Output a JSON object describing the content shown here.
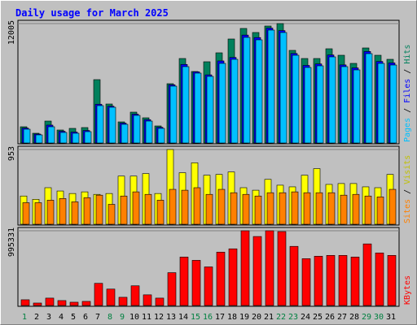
{
  "title": "Daily usage for March 2025",
  "chart_data": [
    {
      "type": "bar",
      "ylim": [
        0,
        12005
      ],
      "yticks": [
        12005
      ],
      "series": [
        {
          "name": "Hits",
          "color": "#00805c",
          "values": [
            1633,
            980,
            2205,
            1307,
            1470,
            1552,
            6370,
            3920,
            2123,
            3103,
            2532,
            1715,
            5962,
            8493,
            7187,
            8167,
            9065,
            10454,
            11515,
            11107,
            11760,
            12005,
            9310,
            8493,
            8493,
            9473,
            8820,
            8003,
            9555,
            8820,
            8412
          ]
        },
        {
          "name": "Files",
          "color": "#0000ff",
          "values": [
            1500,
            900,
            1800,
            1180,
            1100,
            1260,
            3900,
            3700,
            2000,
            2900,
            2350,
            1580,
            5850,
            7900,
            7150,
            6850,
            8250,
            8600,
            10850,
            10600,
            11550,
            11300,
            9000,
            7800,
            7950,
            8850,
            7850,
            7550,
            9200,
            8200,
            8050
          ]
        },
        {
          "name": "Pages",
          "color": "#00c0ff",
          "values": [
            1388,
            817,
            1633,
            1062,
            980,
            1143,
            3757,
            3594,
            1878,
            2777,
            2205,
            1470,
            5717,
            7677,
            7024,
            6697,
            8003,
            8412,
            10617,
            10372,
            11352,
            11107,
            8820,
            7595,
            7758,
            8657,
            7677,
            7350,
            8983,
            8003,
            7840
          ]
        }
      ]
    },
    {
      "type": "bar",
      "ylim": [
        0,
        953
      ],
      "yticks": [
        953
      ],
      "series": [
        {
          "name": "Visits",
          "color": "#ffff00",
          "label_color": "#c0c000",
          "values": [
            360,
            318,
            466,
            424,
            392,
            413,
            381,
            392,
            614,
            614,
            646,
            392,
            953,
            657,
            783,
            625,
            635,
            667,
            466,
            434,
            572,
            498,
            477,
            625,
            709,
            508,
            519,
            519,
            477,
            466,
            635
          ]
        },
        {
          "name": "Sites",
          "color": "#ff8000",
          "values": [
            275,
            275,
            307,
            328,
            286,
            339,
            371,
            254,
            360,
            413,
            381,
            307,
            445,
            434,
            466,
            381,
            445,
            402,
            381,
            360,
            402,
            402,
            413,
            402,
            402,
            402,
            371,
            381,
            360,
            349,
            445
          ]
        }
      ]
    },
    {
      "type": "bar",
      "ylim": [
        0,
        995331
      ],
      "yticks": [
        995331
      ],
      "categories": [
        "1",
        "2",
        "3",
        "4",
        "5",
        "6",
        "7",
        "8",
        "9",
        "10",
        "11",
        "12",
        "13",
        "14",
        "15",
        "16",
        "17",
        "18",
        "19",
        "20",
        "21",
        "22",
        "23",
        "24",
        "25",
        "26",
        "27",
        "28",
        "29",
        "30",
        "31"
      ],
      "category_colors": [
        "#008040",
        "#000000",
        "#000000",
        "#000000",
        "#000000",
        "#000000",
        "#000000",
        "#008040",
        "#008040",
        "#000000",
        "#000000",
        "#000000",
        "#000000",
        "#000000",
        "#008040",
        "#008040",
        "#000000",
        "#000000",
        "#000000",
        "#000000",
        "#000000",
        "#008040",
        "#008040",
        "#000000",
        "#000000",
        "#000000",
        "#000000",
        "#000000",
        "#008040",
        "#008040",
        "#000000"
      ],
      "series": [
        {
          "name": "KBytes",
          "color": "#ff0000",
          "values": [
            76563,
            32813,
            98438,
            65625,
            43750,
            54688,
            295313,
            218750,
            109375,
            262500,
            142188,
            98438,
            437500,
            645313,
            601563,
            514063,
            710938,
            754688,
            995331,
            918750,
            995331,
            984375,
            787500,
            623438,
            656250,
            667188,
            667188,
            645313,
            820313,
            700000,
            667188
          ]
        }
      ]
    }
  ]
}
